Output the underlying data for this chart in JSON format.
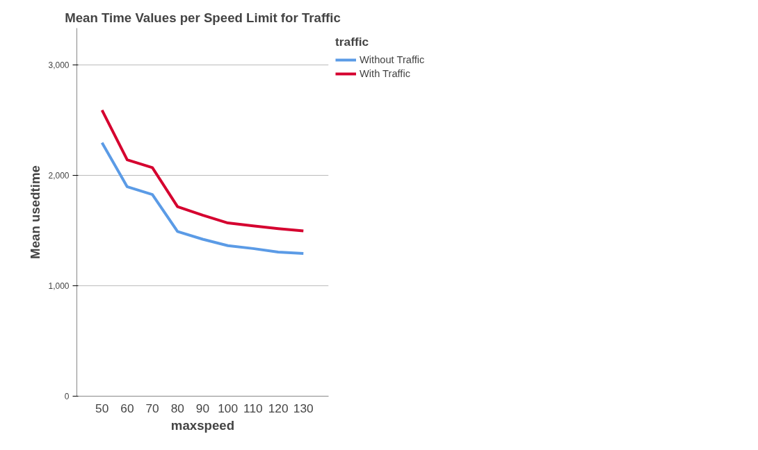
{
  "chart_data": {
    "type": "line",
    "title": "Mean Time Values per Speed Limit for Traffic",
    "xlabel": "maxspeed",
    "ylabel": "Mean usedtime",
    "legend_title": "traffic",
    "x": [
      50,
      60,
      70,
      80,
      90,
      100,
      110,
      120,
      130
    ],
    "series": [
      {
        "name": "Without Traffic",
        "color": "#5b9be6",
        "values": [
          2293,
          1895,
          1824,
          1490,
          1420,
          1362,
          1336,
          1304,
          1291
        ]
      },
      {
        "name": "With Traffic",
        "color": "#d5002f",
        "values": [
          2588,
          2139,
          2068,
          1715,
          1638,
          1567,
          1541,
          1516,
          1496
        ]
      }
    ],
    "xlim": [
      40,
      140
    ],
    "xticks": [
      50,
      60,
      70,
      80,
      90,
      100,
      110,
      120,
      130
    ],
    "ylim": [
      0,
      3330
    ],
    "yticks": [
      0,
      {
        "value": 1000,
        "label": "1,000"
      },
      {
        "value": 2000,
        "label": "2,000"
      },
      {
        "value": 3000,
        "label": "3,000"
      }
    ],
    "grid": "y",
    "legend": "top right",
    "marker": "none",
    "line_style": "solid"
  }
}
